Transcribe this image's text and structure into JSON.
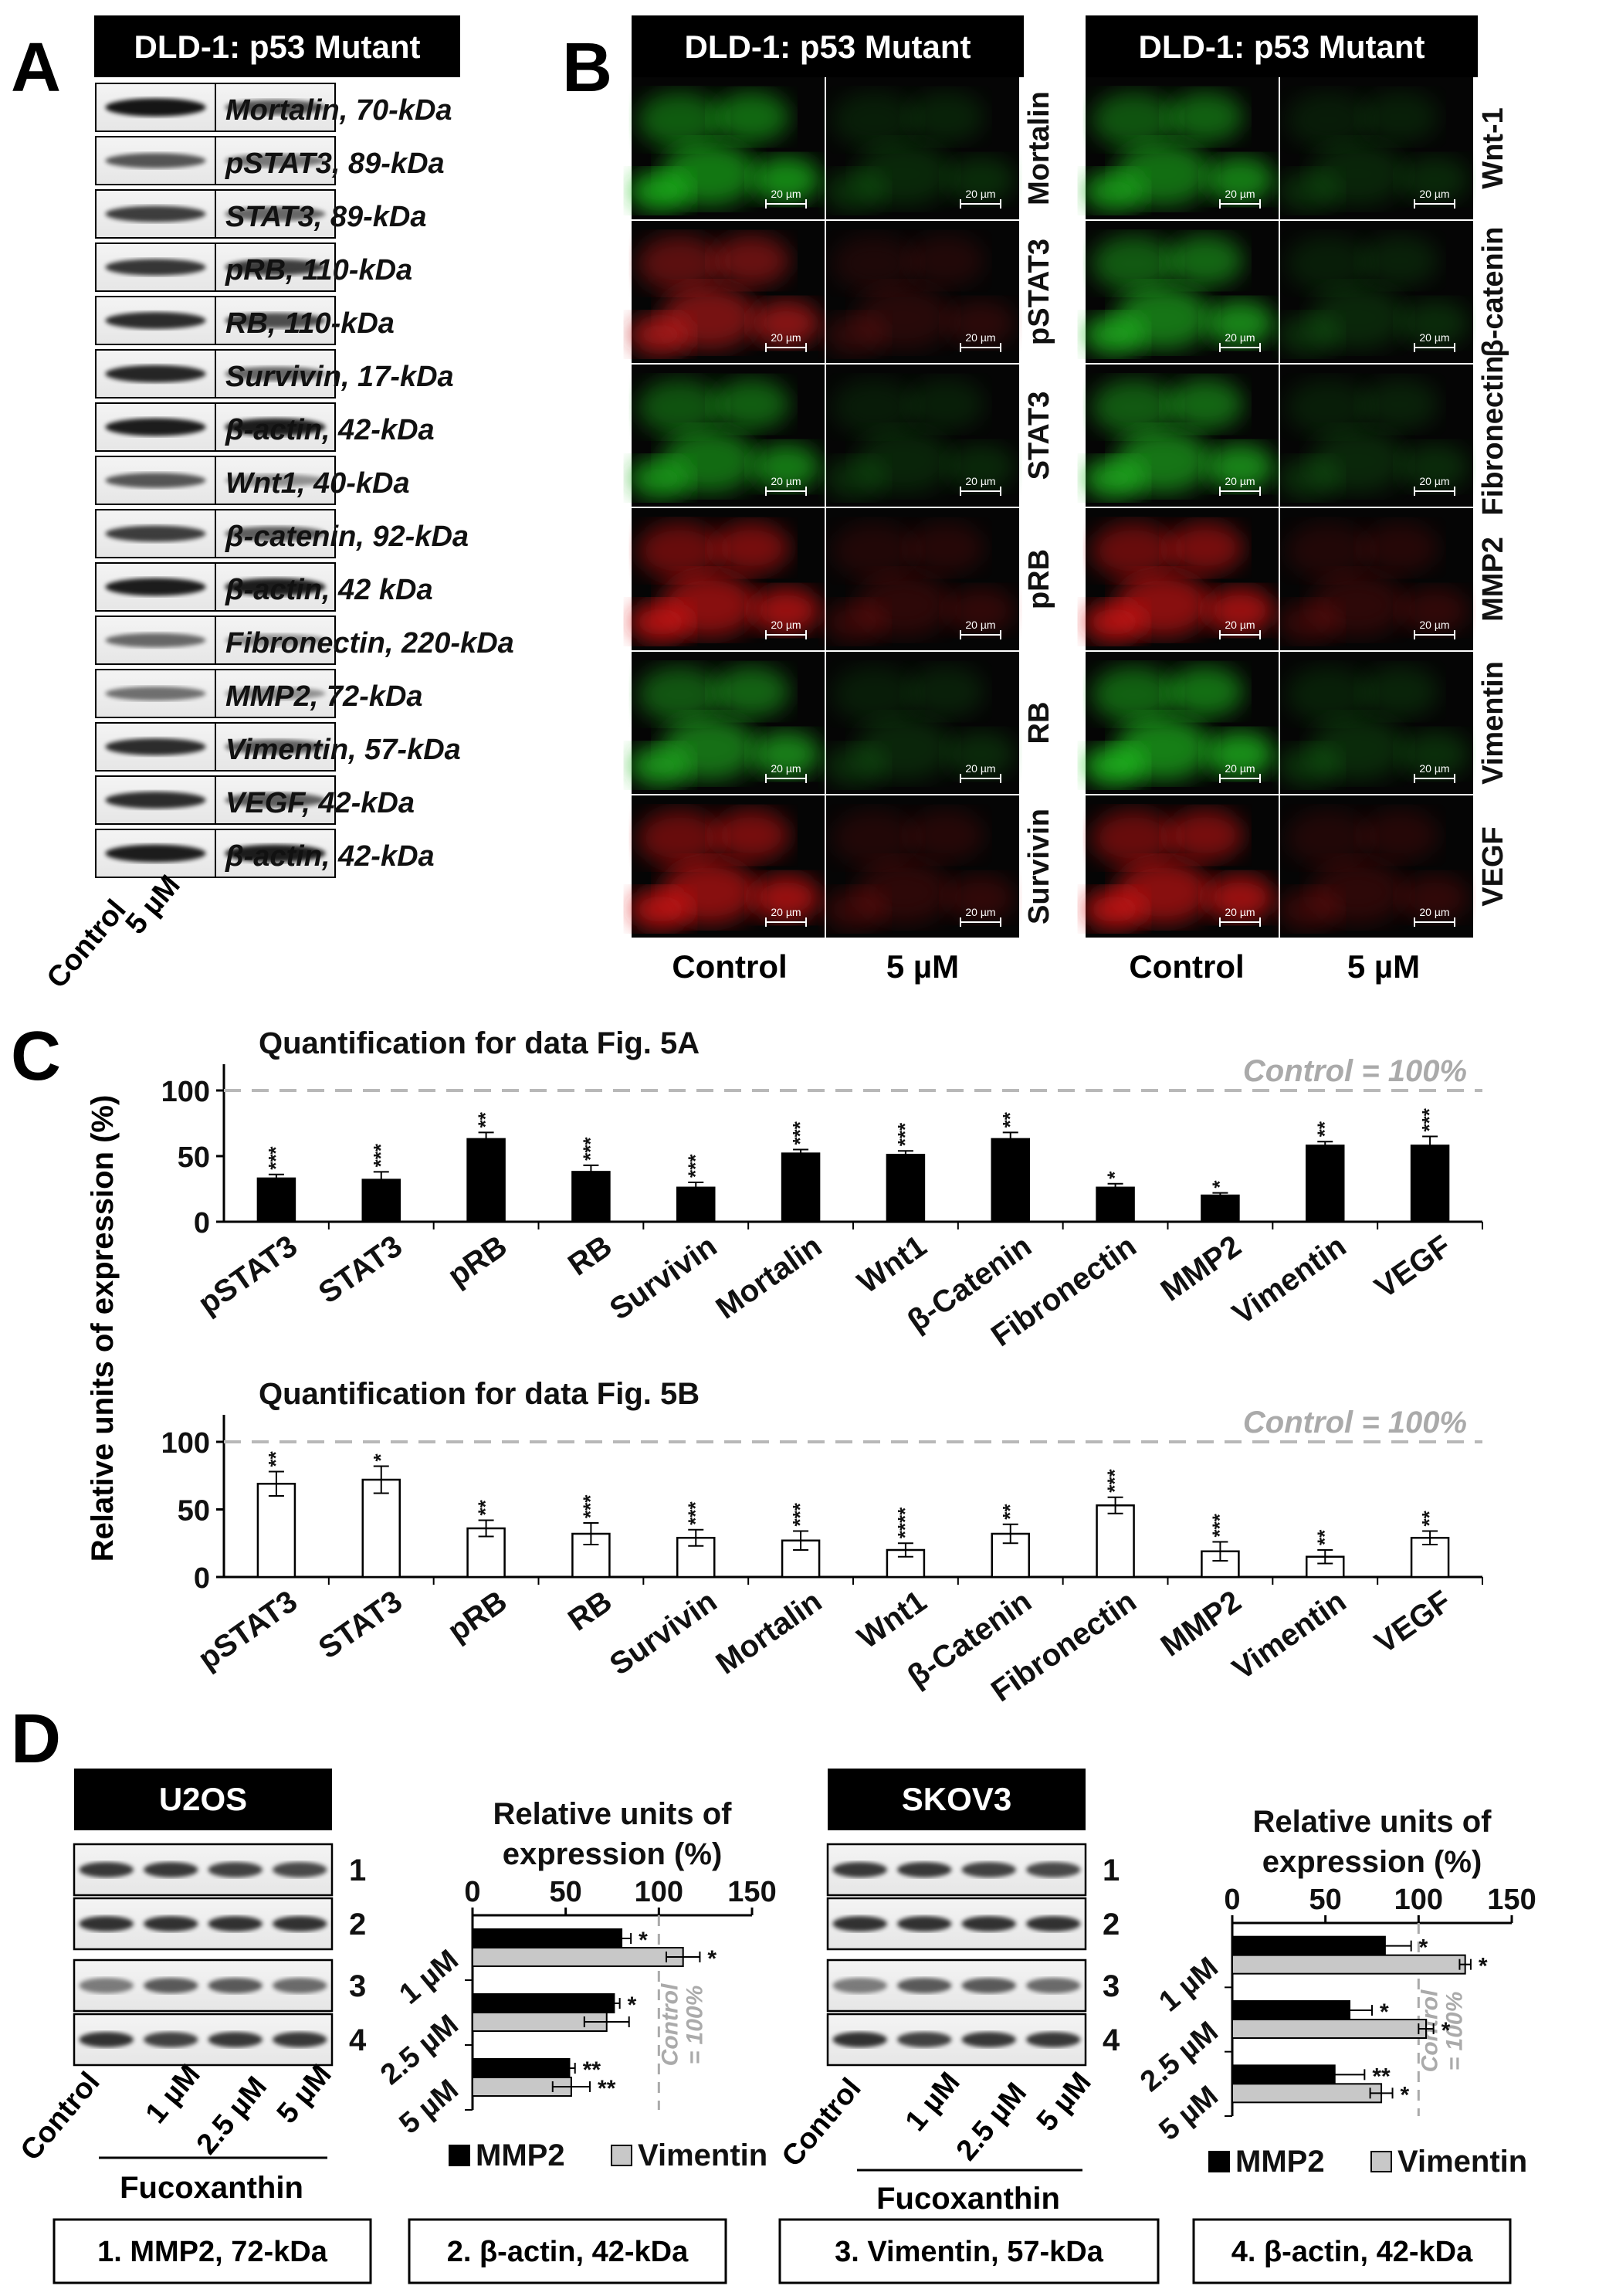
{
  "panel_letters": {
    "a": "A",
    "b": "B",
    "c": "C",
    "d": "D"
  },
  "panel_a": {
    "header": "DLD-1: p53 Mutant",
    "bands": [
      "Mortalin, 70-kDa",
      "pSTAT3, 89-kDa",
      "STAT3, 89-kDa",
      "pRB, 110-kDa",
      "RB, 110-kDa",
      "Survivin, 17-kDa",
      "β-actin, 42-kDa",
      "Wnt1, 40-kDa",
      "β-catenin, 92-kDa",
      "β-actin, 42 kDa",
      "Fibronectin, 220-kDa",
      "MMP2, 72-kDa",
      "Vimentin, 57-kDa",
      "VEGF, 42-kDa",
      "β-actin, 42-kDa"
    ],
    "lanes": [
      "Control",
      "5 µM"
    ]
  },
  "panel_b": {
    "header_left": "DLD-1: p53 Mutant",
    "header_right": "DLD-1: p53 Mutant",
    "rows_left": [
      "Mortalin",
      "pSTAT3",
      "STAT3",
      "pRB",
      "RB",
      "Survivin"
    ],
    "rows_right": [
      "Wnt-1",
      "β-catenin",
      "Fibronectin",
      "MMP2",
      "Vimentin",
      "VEGF"
    ],
    "scale": "20 µm",
    "cols": [
      "Control",
      "5 µM"
    ],
    "colors_left": [
      "#1fc41f",
      "#c41c1c",
      "#1fb01f",
      "#e01818",
      "#20b820",
      "#e01818"
    ],
    "colors_right": [
      "#1fb41f",
      "#20c020",
      "#20c020",
      "#e01818",
      "#22d022",
      "#e01818"
    ]
  },
  "chart_data": [
    {
      "type": "bar",
      "title": "Quantification for data Fig. 5A",
      "categories": [
        "pSTAT3",
        "STAT3",
        "pRB",
        "RB",
        "Survivin",
        "Mortalin",
        "Wnt1",
        "β-Catenin",
        "Fibronectin",
        "MMP2",
        "Vimentin",
        "VEGF"
      ],
      "values": [
        33,
        32,
        63,
        38,
        26,
        52,
        51,
        63,
        26,
        20,
        58,
        58
      ],
      "errors": [
        3,
        6,
        5,
        5,
        4,
        3,
        3,
        5,
        3,
        2,
        3,
        7
      ],
      "significance": [
        "***",
        "***",
        "**",
        "***",
        "***",
        "***",
        "***",
        "**",
        "*",
        "*",
        "**",
        "***"
      ],
      "reference_label": "Control = 100%",
      "reference_value": 100,
      "ylim": [
        0,
        120
      ],
      "yticks": [
        0,
        50,
        100
      ],
      "fill": "#000000"
    },
    {
      "type": "bar",
      "title": "Quantification for data Fig. 5B",
      "categories": [
        "pSTAT3",
        "STAT3",
        "pRB",
        "RB",
        "Survivin",
        "Mortalin",
        "Wnt1",
        "β-Catenin",
        "Fibronectin",
        "MMP2",
        "Vimentin",
        "VEGF"
      ],
      "values": [
        69,
        72,
        36,
        32,
        29,
        27,
        20,
        32,
        53,
        19,
        15,
        29
      ],
      "errors": [
        9,
        10,
        6,
        8,
        6,
        7,
        5,
        7,
        6,
        7,
        5,
        5
      ],
      "significance": [
        "**",
        "*",
        "**",
        "***",
        "***",
        "***",
        "****",
        "**",
        "***",
        "***",
        "**",
        "**"
      ],
      "reference_label": "Control = 100%",
      "reference_value": 100,
      "ylim": [
        0,
        120
      ],
      "yticks": [
        0,
        50,
        100
      ],
      "fill": "#ffffff"
    },
    {
      "type": "bar",
      "orientation": "horizontal",
      "title": "Relative units of expression (%)",
      "categories": [
        "1 µM",
        "2.5 µM",
        "5 µM"
      ],
      "series": [
        {
          "name": "MMP2",
          "values": [
            80,
            76,
            52
          ],
          "errors": [
            5,
            3,
            3
          ],
          "significance": [
            "*",
            "*",
            "**"
          ],
          "fill": "#000000"
        },
        {
          "name": "Vimentin",
          "values": [
            113,
            72,
            53
          ],
          "errors": [
            9,
            12,
            10
          ],
          "significance": [
            "*",
            "",
            "**"
          ],
          "fill": "#c8c8c8"
        }
      ],
      "xlim": [
        0,
        150
      ],
      "xticks": [
        0,
        50,
        100,
        150
      ],
      "reference_value": 100,
      "reference_label": "Control = 100%"
    },
    {
      "type": "bar",
      "orientation": "horizontal",
      "title": "Relative units of expression (%)",
      "categories": [
        "1 µM",
        "2.5 µM",
        "5 µM"
      ],
      "series": [
        {
          "name": "MMP2",
          "values": [
            82,
            63,
            55
          ],
          "errors": [
            14,
            12,
            16
          ],
          "significance": [
            "*",
            "*",
            "**"
          ],
          "fill": "#000000"
        },
        {
          "name": "Vimentin",
          "values": [
            125,
            104,
            80
          ],
          "errors": [
            3,
            4,
            6
          ],
          "significance": [
            "*",
            "*",
            "*"
          ],
          "fill": "#c8c8c8"
        }
      ],
      "xlim": [
        0,
        150
      ],
      "xticks": [
        0,
        50,
        100,
        150
      ],
      "reference_value": 100,
      "reference_label": "Control = 100%"
    }
  ],
  "ylabel": "Relative units of expression (%)",
  "panel_d": {
    "u2os": {
      "header": "U2OS",
      "lanes": [
        "Control",
        "1 µM",
        "2.5 µM",
        "5 µM"
      ],
      "treatment": "Fucoxanthin",
      "rows": [
        "1",
        "2",
        "3",
        "4"
      ]
    },
    "skov3": {
      "header": "SKOV3",
      "lanes": [
        "Control",
        "1 µM",
        "2.5 µM",
        "5 µM"
      ],
      "treatment": "Fucoxanthin",
      "rows": [
        "1",
        "2",
        "3",
        "4"
      ]
    },
    "legend_boxes": [
      "1. MMP2, 72-kDa",
      "2. β-actin, 42-kDa",
      "3. Vimentin, 57-kDa",
      "4. β-actin, 42-kDa"
    ],
    "chart_title_line1": "Relative units of",
    "chart_title_line2": "expression (%)",
    "ref_line1": "Control",
    "ref_line2": "= 100%"
  }
}
